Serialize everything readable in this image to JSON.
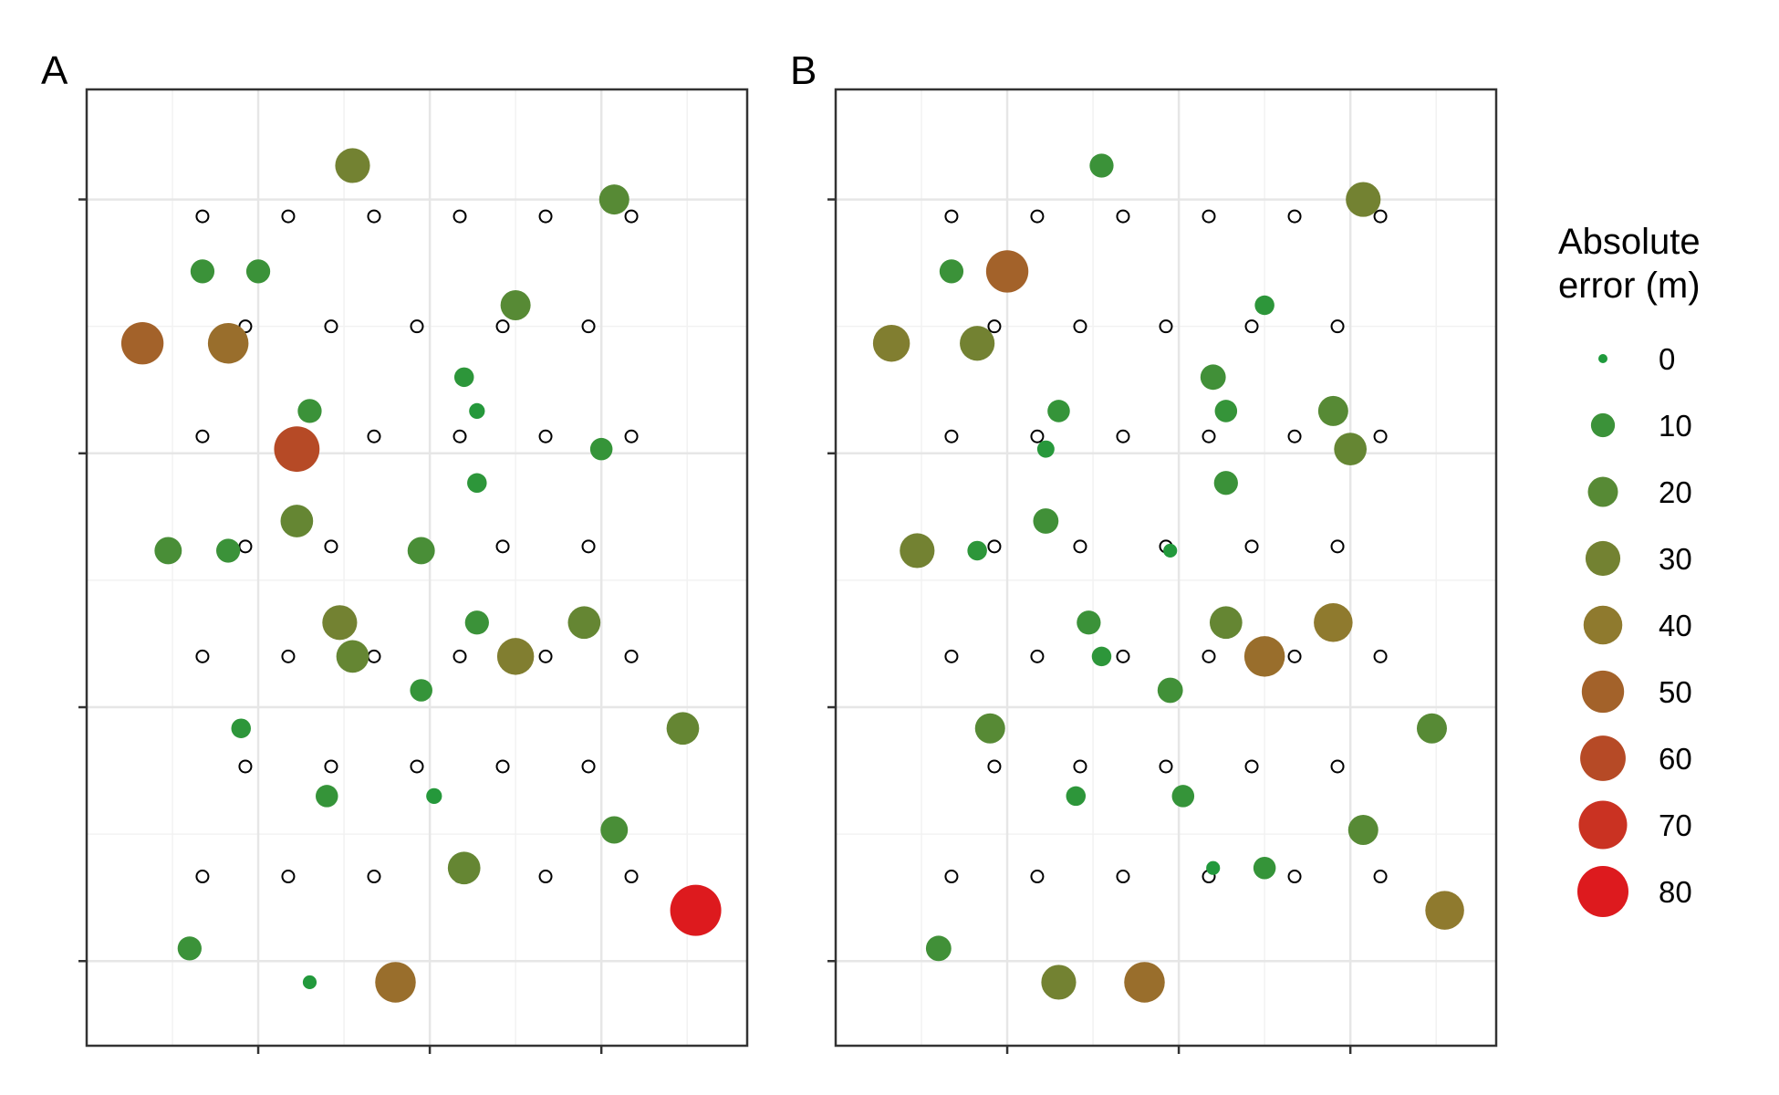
{
  "figure": {
    "legend_title_line1": "Absolute",
    "legend_title_line2": "error (m)"
  },
  "chart_data": [
    {
      "type": "scatter",
      "panel_label": "A",
      "xlim": [
        0,
        7.7
      ],
      "ylim": [
        0,
        11.3
      ],
      "grid": true,
      "x_ticks": [
        2,
        4,
        6
      ],
      "y_ticks": [
        1,
        4,
        7,
        10
      ],
      "tick_labels_shown": false,
      "stations": [
        [
          1.35,
          9.8
        ],
        [
          2.35,
          9.8
        ],
        [
          3.35,
          9.8
        ],
        [
          4.35,
          9.8
        ],
        [
          5.35,
          9.8
        ],
        [
          6.35,
          9.8
        ],
        [
          1.85,
          8.5
        ],
        [
          2.85,
          8.5
        ],
        [
          3.85,
          8.5
        ],
        [
          4.85,
          8.5
        ],
        [
          5.85,
          8.5
        ],
        [
          1.35,
          7.2
        ],
        [
          2.35,
          7.2
        ],
        [
          3.35,
          7.2
        ],
        [
          4.35,
          7.2
        ],
        [
          5.35,
          7.2
        ],
        [
          6.35,
          7.2
        ],
        [
          1.85,
          5.9
        ],
        [
          2.85,
          5.9
        ],
        [
          3.85,
          5.9
        ],
        [
          4.85,
          5.9
        ],
        [
          5.85,
          5.9
        ],
        [
          1.35,
          4.6
        ],
        [
          2.35,
          4.6
        ],
        [
          3.35,
          4.6
        ],
        [
          4.35,
          4.6
        ],
        [
          5.35,
          4.6
        ],
        [
          6.35,
          4.6
        ],
        [
          1.85,
          3.3
        ],
        [
          2.85,
          3.3
        ],
        [
          3.85,
          3.3
        ],
        [
          4.85,
          3.3
        ],
        [
          5.85,
          3.3
        ],
        [
          1.35,
          2.0
        ],
        [
          2.35,
          2.0
        ],
        [
          3.35,
          2.0
        ],
        [
          4.35,
          2.0
        ],
        [
          5.35,
          2.0
        ],
        [
          6.35,
          2.0
        ]
      ],
      "points": [
        {
          "x": 3.1,
          "y": 10.4,
          "error": 30
        },
        {
          "x": 6.15,
          "y": 10.0,
          "error": 20
        },
        {
          "x": 1.35,
          "y": 9.15,
          "error": 10
        },
        {
          "x": 2.0,
          "y": 9.15,
          "error": 10
        },
        {
          "x": 5.0,
          "y": 8.75,
          "error": 20
        },
        {
          "x": 0.65,
          "y": 8.3,
          "error": 50
        },
        {
          "x": 1.65,
          "y": 8.3,
          "error": 45
        },
        {
          "x": 4.4,
          "y": 7.9,
          "error": 5
        },
        {
          "x": 2.6,
          "y": 7.5,
          "error": 10
        },
        {
          "x": 4.55,
          "y": 7.5,
          "error": 2
        },
        {
          "x": 2.45,
          "y": 7.05,
          "error": 60
        },
        {
          "x": 6.0,
          "y": 7.05,
          "error": 8
        },
        {
          "x": 4.55,
          "y": 6.65,
          "error": 5
        },
        {
          "x": 2.45,
          "y": 6.2,
          "error": 25
        },
        {
          "x": 0.95,
          "y": 5.85,
          "error": 15
        },
        {
          "x": 1.65,
          "y": 5.85,
          "error": 10
        },
        {
          "x": 3.9,
          "y": 5.85,
          "error": 15
        },
        {
          "x": 2.95,
          "y": 5.0,
          "error": 30
        },
        {
          "x": 4.55,
          "y": 5.0,
          "error": 10
        },
        {
          "x": 5.8,
          "y": 5.0,
          "error": 25
        },
        {
          "x": 3.1,
          "y": 4.6,
          "error": 25
        },
        {
          "x": 5.0,
          "y": 4.6,
          "error": 35
        },
        {
          "x": 3.9,
          "y": 4.2,
          "error": 8
        },
        {
          "x": 1.8,
          "y": 3.75,
          "error": 5
        },
        {
          "x": 6.95,
          "y": 3.75,
          "error": 25
        },
        {
          "x": 2.8,
          "y": 2.95,
          "error": 8
        },
        {
          "x": 4.05,
          "y": 2.95,
          "error": 2
        },
        {
          "x": 6.15,
          "y": 2.55,
          "error": 15
        },
        {
          "x": 4.4,
          "y": 2.1,
          "error": 25
        },
        {
          "x": 7.1,
          "y": 1.6,
          "error": 80
        },
        {
          "x": 1.2,
          "y": 1.15,
          "error": 10
        },
        {
          "x": 2.6,
          "y": 0.75,
          "error": 1
        },
        {
          "x": 3.6,
          "y": 0.75,
          "error": 45
        }
      ]
    },
    {
      "type": "scatter",
      "panel_label": "B",
      "xlim": [
        0,
        7.7
      ],
      "ylim": [
        0,
        11.3
      ],
      "grid": true,
      "x_ticks": [
        2,
        4,
        6
      ],
      "y_ticks": [
        1,
        4,
        7,
        10
      ],
      "tick_labels_shown": false,
      "stations": [
        [
          1.35,
          9.8
        ],
        [
          2.35,
          9.8
        ],
        [
          3.35,
          9.8
        ],
        [
          4.35,
          9.8
        ],
        [
          5.35,
          9.8
        ],
        [
          6.35,
          9.8
        ],
        [
          1.85,
          8.5
        ],
        [
          2.85,
          8.5
        ],
        [
          3.85,
          8.5
        ],
        [
          4.85,
          8.5
        ],
        [
          5.85,
          8.5
        ],
        [
          1.35,
          7.2
        ],
        [
          2.35,
          7.2
        ],
        [
          3.35,
          7.2
        ],
        [
          4.35,
          7.2
        ],
        [
          5.35,
          7.2
        ],
        [
          6.35,
          7.2
        ],
        [
          1.85,
          5.9
        ],
        [
          2.85,
          5.9
        ],
        [
          3.85,
          5.9
        ],
        [
          4.85,
          5.9
        ],
        [
          5.85,
          5.9
        ],
        [
          1.35,
          4.6
        ],
        [
          2.35,
          4.6
        ],
        [
          3.35,
          4.6
        ],
        [
          4.35,
          4.6
        ],
        [
          5.35,
          4.6
        ],
        [
          6.35,
          4.6
        ],
        [
          1.85,
          3.3
        ],
        [
          2.85,
          3.3
        ],
        [
          3.85,
          3.3
        ],
        [
          4.85,
          3.3
        ],
        [
          5.85,
          3.3
        ],
        [
          1.35,
          2.0
        ],
        [
          2.35,
          2.0
        ],
        [
          3.35,
          2.0
        ],
        [
          4.35,
          2.0
        ],
        [
          5.35,
          2.0
        ],
        [
          6.35,
          2.0
        ]
      ],
      "points": [
        {
          "x": 3.1,
          "y": 10.4,
          "error": 10
        },
        {
          "x": 6.15,
          "y": 10.0,
          "error": 30
        },
        {
          "x": 1.35,
          "y": 9.15,
          "error": 10
        },
        {
          "x": 2.0,
          "y": 9.15,
          "error": 50
        },
        {
          "x": 5.0,
          "y": 8.75,
          "error": 5
        },
        {
          "x": 0.65,
          "y": 8.3,
          "error": 35
        },
        {
          "x": 1.65,
          "y": 8.3,
          "error": 30
        },
        {
          "x": 4.4,
          "y": 7.9,
          "error": 12
        },
        {
          "x": 2.6,
          "y": 7.5,
          "error": 8
        },
        {
          "x": 4.55,
          "y": 7.5,
          "error": 8
        },
        {
          "x": 5.8,
          "y": 7.5,
          "error": 20
        },
        {
          "x": 2.45,
          "y": 7.05,
          "error": 3
        },
        {
          "x": 6.0,
          "y": 7.05,
          "error": 25
        },
        {
          "x": 4.55,
          "y": 6.65,
          "error": 10
        },
        {
          "x": 2.45,
          "y": 6.2,
          "error": 12
        },
        {
          "x": 0.95,
          "y": 5.85,
          "error": 30
        },
        {
          "x": 1.65,
          "y": 5.85,
          "error": 5
        },
        {
          "x": 3.9,
          "y": 5.85,
          "error": 1
        },
        {
          "x": 2.95,
          "y": 5.0,
          "error": 10
        },
        {
          "x": 4.55,
          "y": 5.0,
          "error": 25
        },
        {
          "x": 5.8,
          "y": 5.0,
          "error": 40
        },
        {
          "x": 3.1,
          "y": 4.6,
          "error": 5
        },
        {
          "x": 5.0,
          "y": 4.6,
          "error": 45
        },
        {
          "x": 3.9,
          "y": 4.2,
          "error": 12
        },
        {
          "x": 1.8,
          "y": 3.75,
          "error": 20
        },
        {
          "x": 6.95,
          "y": 3.75,
          "error": 20
        },
        {
          "x": 2.8,
          "y": 2.95,
          "error": 5
        },
        {
          "x": 4.05,
          "y": 2.95,
          "error": 8
        },
        {
          "x": 6.15,
          "y": 2.55,
          "error": 20
        },
        {
          "x": 4.4,
          "y": 2.1,
          "error": 1
        },
        {
          "x": 5.0,
          "y": 2.1,
          "error": 8
        },
        {
          "x": 7.1,
          "y": 1.6,
          "error": 40
        },
        {
          "x": 1.2,
          "y": 1.15,
          "error": 12
        },
        {
          "x": 2.6,
          "y": 0.75,
          "error": 30
        },
        {
          "x": 3.6,
          "y": 0.75,
          "error": 45
        }
      ]
    }
  ],
  "legend": {
    "items": [
      {
        "label": "0",
        "value": 0
      },
      {
        "label": "10",
        "value": 10
      },
      {
        "label": "20",
        "value": 20
      },
      {
        "label": "30",
        "value": 30
      },
      {
        "label": "40",
        "value": 40
      },
      {
        "label": "50",
        "value": 50
      },
      {
        "label": "60",
        "value": 60
      },
      {
        "label": "70",
        "value": 70
      },
      {
        "label": "80",
        "value": 80
      }
    ],
    "placement": "right",
    "color_low": "#1f9a3c",
    "color_mid": "#8f7a2e",
    "color_high": "#dd1a1e"
  }
}
